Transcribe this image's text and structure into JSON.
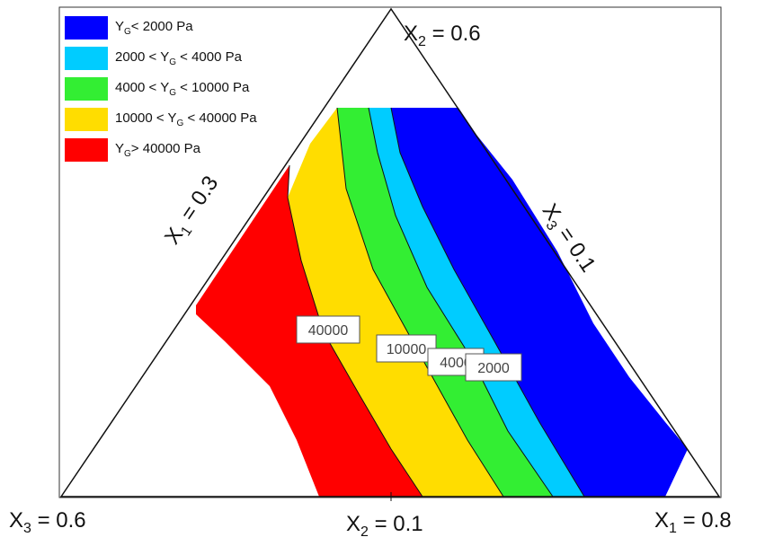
{
  "chart_data": {
    "type": "ternary-contour",
    "variables": [
      "X1",
      "X2",
      "X3"
    ],
    "vertices": {
      "bottom_left": "X₃ = 0.6",
      "top": "X₂ = 0.6",
      "bottom_right": "X₁ = 0.8",
      "bottom_mid": "X₂ = 0.1",
      "left_edge": "X₁ = 0.3",
      "right_edge": "X₃ = 0.1"
    },
    "response": "YG",
    "unit": "Pa",
    "legend": [
      {
        "label_parts": [
          "Y",
          "G",
          "< 2000 Pa"
        ],
        "color": "#0000ff"
      },
      {
        "label_parts": [
          "2000 < Y",
          "G",
          " < 4000 Pa"
        ],
        "color": "#00ccff"
      },
      {
        "label_parts": [
          "4000 < Y",
          "G",
          " < 10000 Pa"
        ],
        "color": "#33ee33"
      },
      {
        "label_parts": [
          "10000 < Y",
          "G",
          " < 40000 Pa"
        ],
        "color": "#ffdd00"
      },
      {
        "label_parts": [
          "Y",
          "G",
          "> 40000 Pa"
        ],
        "color": "#ff0000"
      }
    ],
    "contour_levels": [
      {
        "value": 40000,
        "label": "40000"
      },
      {
        "value": 10000,
        "label": "10000"
      },
      {
        "value": 4000,
        "label": "4000"
      },
      {
        "value": 2000,
        "label": "2000"
      }
    ]
  },
  "labels": {
    "top": {
      "main": "X",
      "sub": "2",
      "rest": " = 0.6"
    },
    "bottom_left": {
      "main": "X",
      "sub": "3",
      "rest": " = 0.6"
    },
    "bottom_mid": {
      "main": "X",
      "sub": "2",
      "rest": " = 0.1"
    },
    "bottom_right": {
      "main": "X",
      "sub": "1",
      "rest": " = 0.8"
    },
    "left_edge": {
      "main": "X",
      "sub": "1",
      "rest": " = 0.3"
    },
    "right_edge": {
      "main": "X",
      "sub": "3",
      "rest": " = 0.1"
    }
  }
}
